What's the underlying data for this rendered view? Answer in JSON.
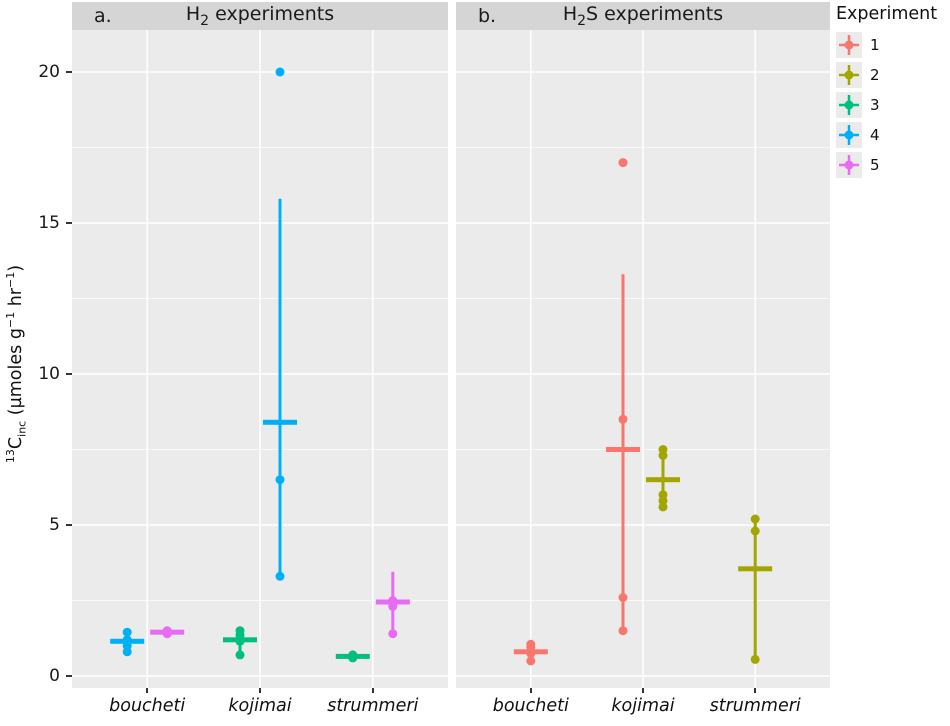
{
  "chart_data": {
    "type": "scatter",
    "title": "",
    "ylabel": "13Cinc (µmoles g-1 hr-1)",
    "ylabel_parts": [
      {
        "t": "13",
        "sup": true
      },
      {
        "t": "C"
      },
      {
        "t": "inc",
        "sub": true
      },
      {
        "t": " (µmoles g"
      },
      {
        "t": "−1",
        "sup": true
      },
      {
        "t": " hr"
      },
      {
        "t": "−1",
        "sup": true
      },
      {
        "t": ")"
      }
    ],
    "ylim": [
      0,
      20.5
    ],
    "yticks": [
      0,
      5,
      10,
      15,
      20
    ],
    "y_minor": [
      2.5,
      7.5,
      12.5,
      17.5
    ],
    "categories": [
      "boucheti",
      "kojimai",
      "strummeri"
    ],
    "panel_bg": "#EBEBEB",
    "strip_bg": "#D5D5D5",
    "grid_color": "#FFFFFF",
    "legend": {
      "title": "Experiment",
      "position": "right",
      "entries": [
        {
          "label": "1",
          "color": "#F8766D"
        },
        {
          "label": "2",
          "color": "#A3A500"
        },
        {
          "label": "3",
          "color": "#00BF7D"
        },
        {
          "label": "4",
          "color": "#00B0F6"
        },
        {
          "label": "5",
          "color": "#E76BF3"
        }
      ]
    },
    "panels": [
      {
        "tag": "a.",
        "title": "H2 experiments",
        "title_parts": [
          {
            "t": "H"
          },
          {
            "t": "2",
            "sub": true
          },
          {
            "t": " experiments"
          }
        ],
        "groups": [
          {
            "species": "boucheti",
            "experiment": "4",
            "color": "#00B0F6",
            "offset": -1,
            "points": [
              0.8,
              1.0,
              1.2,
              1.45
            ],
            "mean": 1.15,
            "lo": 0.8,
            "hi": 1.5
          },
          {
            "species": "boucheti",
            "experiment": "5",
            "color": "#E76BF3",
            "offset": 1,
            "points": [
              1.4,
              1.5
            ],
            "mean": 1.45,
            "lo": 1.35,
            "hi": 1.55
          },
          {
            "species": "kojimai",
            "experiment": "3",
            "color": "#00BF7D",
            "offset": -1,
            "points": [
              0.7,
              1.15,
              1.35,
              1.5
            ],
            "mean": 1.2,
            "lo": 0.7,
            "hi": 1.6
          },
          {
            "species": "kojimai",
            "experiment": "4",
            "color": "#00B0F6",
            "offset": 1,
            "points": [
              3.3,
              6.5,
              20.0
            ],
            "mean": 8.4,
            "lo": 3.3,
            "hi": 15.8
          },
          {
            "species": "strummeri",
            "experiment": "3",
            "color": "#00BF7D",
            "offset": -1,
            "points": [
              0.6,
              0.65,
              0.7
            ],
            "mean": 0.65,
            "lo": 0.55,
            "hi": 0.75
          },
          {
            "species": "strummeri",
            "experiment": "5",
            "color": "#E76BF3",
            "offset": 1,
            "points": [
              1.4,
              2.3,
              2.5
            ],
            "mean": 2.45,
            "lo": 1.4,
            "hi": 3.45
          }
        ]
      },
      {
        "tag": "b.",
        "title": "H2S experiments",
        "title_parts": [
          {
            "t": "H"
          },
          {
            "t": "2",
            "sub": true
          },
          {
            "t": "S experiments"
          }
        ],
        "groups": [
          {
            "species": "boucheti",
            "experiment": "1",
            "color": "#F8766D",
            "offset": 0,
            "points": [
              0.5,
              0.75,
              0.95,
              1.05
            ],
            "mean": 0.8,
            "lo": 0.5,
            "hi": 1.1
          },
          {
            "species": "kojimai",
            "experiment": "1",
            "color": "#F8766D",
            "offset": -1,
            "points": [
              1.5,
              2.6,
              8.5,
              17.0
            ],
            "mean": 7.5,
            "lo": 1.6,
            "hi": 13.3
          },
          {
            "species": "kojimai",
            "experiment": "2",
            "color": "#A3A500",
            "offset": 1,
            "points": [
              5.6,
              5.8,
              6.0,
              7.3,
              7.5
            ],
            "mean": 6.5,
            "lo": 5.6,
            "hi": 7.4
          },
          {
            "species": "strummeri",
            "experiment": "2",
            "color": "#A3A500",
            "offset": 0,
            "points": [
              0.55,
              4.8,
              5.2
            ],
            "mean": 3.55,
            "lo": 0.5,
            "hi": 5.2
          }
        ]
      }
    ]
  }
}
